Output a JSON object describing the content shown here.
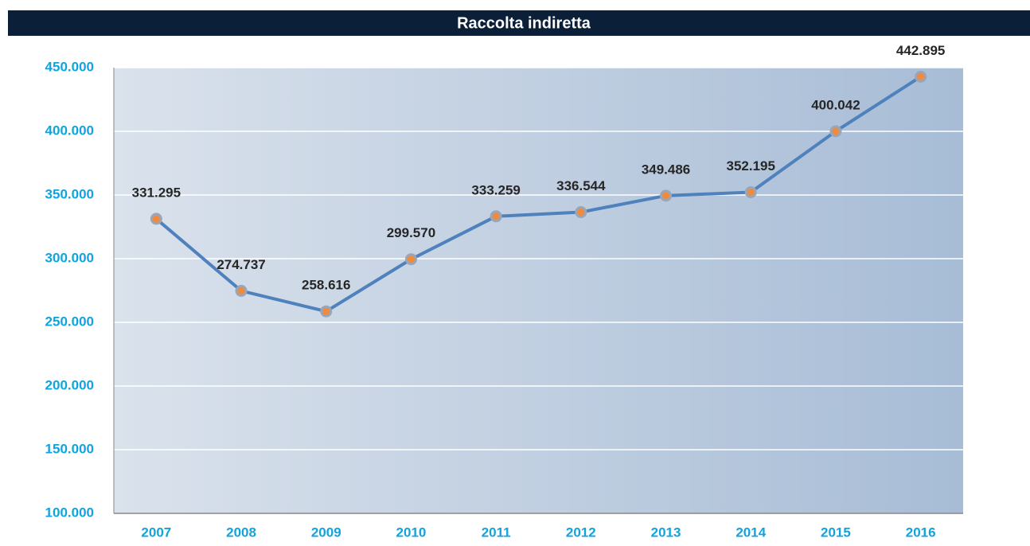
{
  "chart_data": {
    "type": "line",
    "title": "Raccolta indiretta",
    "categories": [
      "2007",
      "2008",
      "2009",
      "2010",
      "2011",
      "2012",
      "2013",
      "2014",
      "2015",
      "2016"
    ],
    "series": [
      {
        "name": "Raccolta indiretta",
        "color": "#4f81bd",
        "values": [
          331295,
          274737,
          258616,
          299570,
          333259,
          336544,
          349486,
          352195,
          400042,
          442895
        ],
        "value_labels": [
          "331.295",
          "274.737",
          "258.616",
          "299.570",
          "333.259",
          "336.544",
          "349.486",
          "352.195",
          "400.042",
          "442.895"
        ]
      }
    ],
    "ylim": [
      100000,
      450000
    ],
    "yticks": [
      {
        "value": 100000,
        "label": "100.000"
      },
      {
        "value": 150000,
        "label": "150.000"
      },
      {
        "value": 200000,
        "label": "200.000"
      },
      {
        "value": 250000,
        "label": "250.000"
      },
      {
        "value": 300000,
        "label": "300.000"
      },
      {
        "value": 350000,
        "label": "350.000"
      },
      {
        "value": 400000,
        "label": "400.000"
      },
      {
        "value": 450000,
        "label": "450.000"
      }
    ],
    "grid": true
  }
}
